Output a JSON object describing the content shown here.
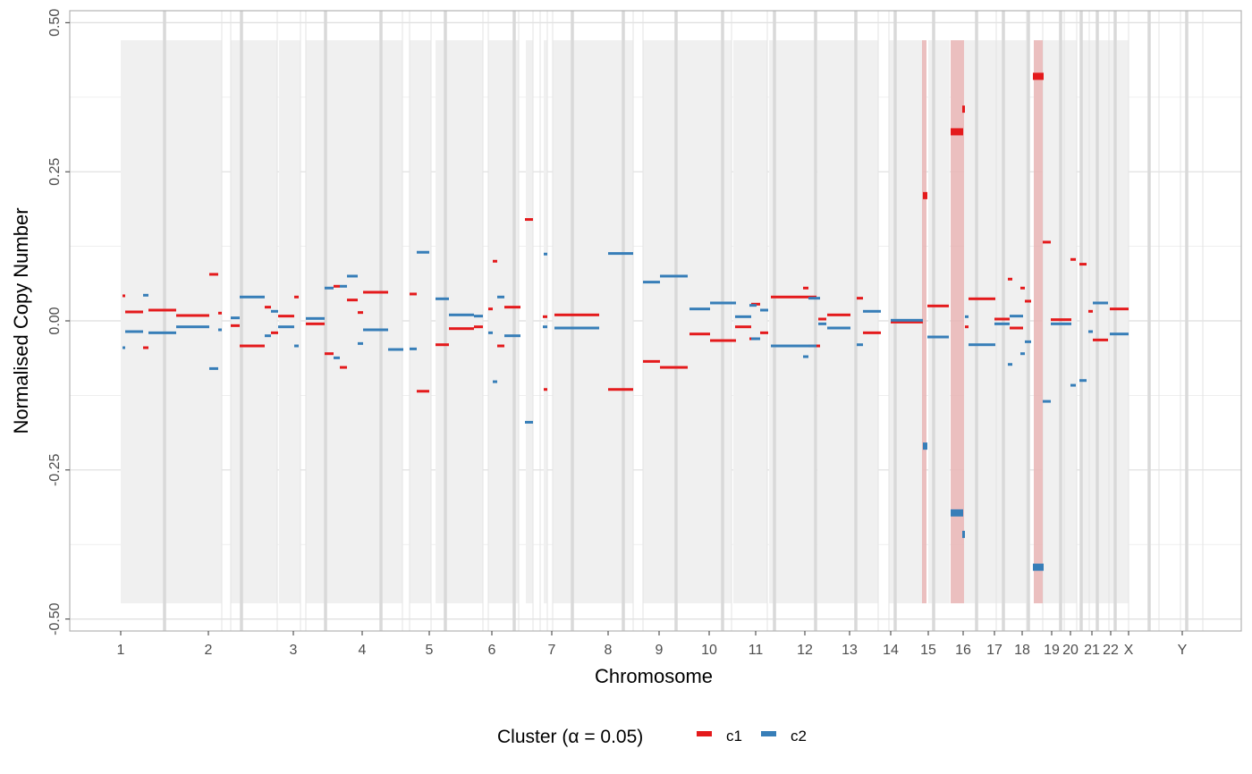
{
  "chart_data": {
    "type": "segment",
    "xlabel": "Chromosome",
    "ylabel": "Normalised Copy Number",
    "ylim": [
      -0.52,
      0.52
    ],
    "y_ticks": [
      "0.50",
      "0.25",
      "0.00",
      "-0.25",
      "-0.50"
    ],
    "y_tick_values": [
      0.5,
      0.25,
      0.0,
      -0.25,
      -0.5
    ],
    "grid": true,
    "legend_placement": "bottom",
    "legend": {
      "title": "Cluster (α = 0.05)",
      "items": [
        {
          "name": "c1",
          "color": "#e41a1c"
        },
        {
          "name": "c2",
          "color": "#377eb8"
        }
      ]
    },
    "chromosomes": [
      "1",
      "2",
      "3",
      "4",
      "5",
      "6",
      "7",
      "8",
      "9",
      "10",
      "11",
      "12",
      "13",
      "14",
      "15",
      "16",
      "17",
      "18",
      "19",
      "20",
      "21",
      "22",
      "X",
      "Y"
    ],
    "highlighted_chromosome_bands": [
      "15",
      "16",
      "19"
    ],
    "series": [
      {
        "name": "c1",
        "color": "#e41a1c",
        "segments": [
          {
            "chrom": "1",
            "start": 0.0,
            "end": 0.02,
            "y": 0.042
          },
          {
            "chrom": "1",
            "start": 0.02,
            "end": 0.15,
            "y": 0.015
          },
          {
            "chrom": "1",
            "start": 0.15,
            "end": 0.2,
            "y": -0.045
          },
          {
            "chrom": "1",
            "start": 0.2,
            "end": 0.42,
            "y": 0.018
          },
          {
            "chrom": "1",
            "start": 0.42,
            "end": 0.72,
            "y": 0.009
          },
          {
            "chrom": "1",
            "start": 0.72,
            "end": 0.82,
            "y": 0.078
          },
          {
            "chrom": "1",
            "start": 0.85,
            "end": 0.9,
            "y": 0.013
          },
          {
            "chrom": "2",
            "start": 0.0,
            "end": 0.05,
            "y": -0.008
          },
          {
            "chrom": "2",
            "start": 0.05,
            "end": 0.32,
            "y": -0.042
          },
          {
            "chrom": "2",
            "start": 0.35,
            "end": 0.42,
            "y": 0.023
          },
          {
            "chrom": "2",
            "start": 0.42,
            "end": 0.5,
            "y": -0.02
          },
          {
            "chrom": "2",
            "start": 0.52,
            "end": 0.7,
            "y": 0.008
          },
          {
            "chrom": "2",
            "start": 0.72,
            "end": 0.78,
            "y": 0.04
          },
          {
            "chrom": "3",
            "start": 0.0,
            "end": 0.15,
            "y": -0.005
          },
          {
            "chrom": "3",
            "start": 0.15,
            "end": 0.22,
            "y": -0.055
          },
          {
            "chrom": "3",
            "start": 0.22,
            "end": 0.28,
            "y": 0.058
          },
          {
            "chrom": "3",
            "start": 0.28,
            "end": 0.36,
            "y": -0.078
          },
          {
            "chrom": "3",
            "start": 0.4,
            "end": 0.44,
            "y": 0.035
          },
          {
            "chrom": "3",
            "start": 0.44,
            "end": 0.62,
            "y": 0.014
          },
          {
            "chrom": "3",
            "start": 0.65,
            "end": 0.9,
            "y": 0.048
          },
          {
            "chrom": "4",
            "start": 0.0,
            "end": 0.05,
            "y": 0.045
          },
          {
            "chrom": "4",
            "start": 0.05,
            "end": 0.17,
            "y": -0.118
          },
          {
            "chrom": "4",
            "start": 0.23,
            "end": 0.35,
            "y": -0.04
          },
          {
            "chrom": "4",
            "start": 0.38,
            "end": 0.6,
            "y": -0.013
          },
          {
            "chrom": "4",
            "start": 0.6,
            "end": 0.65,
            "y": -0.01
          },
          {
            "chrom": "5",
            "start": 0.0,
            "end": 0.05,
            "y": 0.02
          },
          {
            "chrom": "5",
            "start": 0.08,
            "end": 0.12,
            "y": 0.1
          },
          {
            "chrom": "5",
            "start": 0.12,
            "end": 0.18,
            "y": -0.042
          },
          {
            "chrom": "5",
            "start": 0.2,
            "end": 0.42,
            "y": 0.023
          },
          {
            "chrom": "5",
            "start": 0.44,
            "end": 0.52,
            "y": 0.17
          },
          {
            "chrom": "6",
            "start": 0.02,
            "end": 0.06,
            "y": -0.115
          },
          {
            "chrom": "6",
            "start": 0.06,
            "end": 0.68,
            "y": 0.007
          },
          {
            "chrom": "6",
            "start": 0.7,
            "end": 0.8,
            "y": 0.01
          },
          {
            "chrom": "7",
            "start": 0.0,
            "end": 0.35,
            "y": -0.115
          },
          {
            "chrom": "8",
            "start": 0.0,
            "end": 0.28,
            "y": -0.068
          },
          {
            "chrom": "8",
            "start": 0.28,
            "end": 0.8,
            "y": -0.078
          },
          {
            "chrom": "9",
            "start": 0.0,
            "end": 0.42,
            "y": -0.022
          },
          {
            "chrom": "9",
            "start": 0.42,
            "end": 0.95,
            "y": -0.033
          },
          {
            "chrom": "10",
            "start": 0.0,
            "end": 0.22,
            "y": -0.01
          },
          {
            "chrom": "10",
            "start": 0.3,
            "end": 0.42,
            "y": 0.028
          },
          {
            "chrom": "10",
            "start": 0.42,
            "end": 0.62,
            "y": -0.02
          },
          {
            "chrom": "10",
            "start": 0.65,
            "end": 0.95,
            "y": 0.04
          },
          {
            "chrom": "11",
            "start": 0.3,
            "end": 0.55,
            "y": -0.03
          },
          {
            "chrom": "11",
            "start": 0.6,
            "end": 0.7,
            "y": 0.055
          },
          {
            "chrom": "12",
            "start": 0.0,
            "end": 0.15,
            "y": 0.003
          },
          {
            "chrom": "12",
            "start": 0.15,
            "end": 0.3,
            "y": -0.042
          },
          {
            "chrom": "12",
            "start": 0.4,
            "end": 0.95,
            "y": 0.01
          },
          {
            "chrom": "13",
            "start": 0.05,
            "end": 0.18,
            "y": 0.038
          },
          {
            "chrom": "13",
            "start": 0.4,
            "end": 0.7,
            "y": -0.02
          },
          {
            "chrom": "14",
            "start": 0.0,
            "end": 0.95,
            "y": -0.002
          },
          {
            "chrom": "15",
            "start": 0.0,
            "end": 0.1,
            "y": 0.21
          },
          {
            "chrom": "15",
            "start": 0.2,
            "end": 0.95,
            "y": 0.025
          },
          {
            "chrom": "16",
            "start": 0.0,
            "end": 0.35,
            "y": 0.317
          },
          {
            "chrom": "16",
            "start": 0.36,
            "end": 0.42,
            "y": 0.355
          },
          {
            "chrom": "16",
            "start": 0.42,
            "end": 0.5,
            "y": -0.01
          },
          {
            "chrom": "16",
            "start": 0.5,
            "end": 1.0,
            "y": 0.037
          },
          {
            "chrom": "17",
            "start": 0.0,
            "end": 0.62,
            "y": 0.003
          },
          {
            "chrom": "17",
            "start": 0.62,
            "end": 0.72,
            "y": 0.07
          },
          {
            "chrom": "17",
            "start": 0.72,
            "end": 1.0,
            "y": -0.012
          },
          {
            "chrom": "18",
            "start": 0.0,
            "end": 0.2,
            "y": 0.055
          },
          {
            "chrom": "18",
            "start": 0.3,
            "end": 0.5,
            "y": 0.033
          },
          {
            "chrom": "18",
            "start": 0.55,
            "end": 0.95,
            "y": 0.41
          },
          {
            "chrom": "19",
            "start": 0.0,
            "end": 0.3,
            "y": 0.132
          },
          {
            "chrom": "19",
            "start": 0.35,
            "end": 1.0,
            "y": 0.002
          },
          {
            "chrom": "20",
            "start": 0.0,
            "end": 0.5,
            "y": 0.103
          },
          {
            "chrom": "20",
            "start": 0.5,
            "end": 1.0,
            "y": 0.095
          },
          {
            "chrom": "21",
            "start": 0.1,
            "end": 0.9,
            "y": 0.016
          },
          {
            "chrom": "22",
            "start": 0.0,
            "end": 0.95,
            "y": -0.032
          },
          {
            "chrom": "X",
            "start": 0.0,
            "end": 0.9,
            "y": 0.02
          }
        ]
      },
      {
        "name": "c2",
        "color": "#377eb8",
        "segments": [
          {
            "chrom": "1",
            "start": 0.0,
            "end": 0.02,
            "y": -0.045
          },
          {
            "chrom": "1",
            "start": 0.03,
            "end": 0.15,
            "y": -0.018
          },
          {
            "chrom": "1",
            "start": 0.15,
            "end": 0.2,
            "y": 0.043
          },
          {
            "chrom": "1",
            "start": 0.2,
            "end": 0.42,
            "y": -0.02
          },
          {
            "chrom": "1",
            "start": 0.42,
            "end": 0.72,
            "y": -0.01
          },
          {
            "chrom": "1",
            "start": 0.72,
            "end": 0.82,
            "y": -0.08
          },
          {
            "chrom": "1",
            "start": 0.85,
            "end": 0.9,
            "y": -0.015
          },
          {
            "chrom": "2",
            "start": 0.0,
            "end": 0.05,
            "y": 0.005
          },
          {
            "chrom": "2",
            "start": 0.05,
            "end": 0.32,
            "y": 0.04
          },
          {
            "chrom": "2",
            "start": 0.35,
            "end": 0.42,
            "y": -0.025
          },
          {
            "chrom": "2",
            "start": 0.42,
            "end": 0.5,
            "y": 0.016
          },
          {
            "chrom": "2",
            "start": 0.52,
            "end": 0.7,
            "y": -0.01
          },
          {
            "chrom": "2",
            "start": 0.72,
            "end": 0.78,
            "y": -0.042
          },
          {
            "chrom": "3",
            "start": 0.0,
            "end": 0.15,
            "y": 0.004
          },
          {
            "chrom": "3",
            "start": 0.15,
            "end": 0.2,
            "y": 0.055
          },
          {
            "chrom": "3",
            "start": 0.2,
            "end": 0.24,
            "y": -0.062
          },
          {
            "chrom": "3",
            "start": 0.24,
            "end": 0.28,
            "y": 0.058
          },
          {
            "chrom": "3",
            "start": 0.28,
            "end": 0.36,
            "y": 0.075
          },
          {
            "chrom": "3",
            "start": 0.4,
            "end": 0.44,
            "y": -0.038
          },
          {
            "chrom": "3",
            "start": 0.44,
            "end": 0.62,
            "y": -0.015
          },
          {
            "chrom": "3",
            "start": 0.65,
            "end": 0.9,
            "y": -0.048
          },
          {
            "chrom": "4",
            "start": 0.0,
            "end": 0.05,
            "y": -0.047
          },
          {
            "chrom": "4",
            "start": 0.05,
            "end": 0.17,
            "y": 0.115
          },
          {
            "chrom": "4",
            "start": 0.23,
            "end": 0.35,
            "y": 0.037
          },
          {
            "chrom": "4",
            "start": 0.38,
            "end": 0.6,
            "y": 0.01
          },
          {
            "chrom": "4",
            "start": 0.6,
            "end": 0.65,
            "y": 0.008
          },
          {
            "chrom": "5",
            "start": 0.0,
            "end": 0.05,
            "y": -0.02
          },
          {
            "chrom": "5",
            "start": 0.08,
            "end": 0.12,
            "y": -0.102
          },
          {
            "chrom": "5",
            "start": 0.12,
            "end": 0.18,
            "y": 0.04
          },
          {
            "chrom": "5",
            "start": 0.2,
            "end": 0.42,
            "y": -0.025
          },
          {
            "chrom": "5",
            "start": 0.44,
            "end": 0.52,
            "y": -0.17
          },
          {
            "chrom": "6",
            "start": 0.02,
            "end": 0.06,
            "y": 0.112
          },
          {
            "chrom": "6",
            "start": 0.06,
            "end": 0.68,
            "y": -0.01
          },
          {
            "chrom": "6",
            "start": 0.7,
            "end": 0.8,
            "y": -0.012
          },
          {
            "chrom": "7",
            "start": 0.0,
            "end": 0.35,
            "y": 0.113
          },
          {
            "chrom": "8",
            "start": 0.0,
            "end": 0.28,
            "y": 0.065
          },
          {
            "chrom": "8",
            "start": 0.28,
            "end": 0.8,
            "y": 0.075
          },
          {
            "chrom": "9",
            "start": 0.0,
            "end": 0.42,
            "y": 0.02
          },
          {
            "chrom": "9",
            "start": 0.42,
            "end": 0.95,
            "y": 0.03
          },
          {
            "chrom": "10",
            "start": 0.0,
            "end": 0.22,
            "y": 0.007
          },
          {
            "chrom": "10",
            "start": 0.3,
            "end": 0.42,
            "y": -0.03
          },
          {
            "chrom": "10",
            "start": 0.42,
            "end": 0.62,
            "y": 0.018
          },
          {
            "chrom": "10",
            "start": 0.65,
            "end": 0.95,
            "y": -0.042
          },
          {
            "chrom": "11",
            "start": 0.3,
            "end": 0.55,
            "y": 0.026
          },
          {
            "chrom": "11",
            "start": 0.6,
            "end": 0.7,
            "y": -0.06
          },
          {
            "chrom": "12",
            "start": 0.0,
            "end": 0.15,
            "y": -0.005
          },
          {
            "chrom": "12",
            "start": 0.15,
            "end": 0.3,
            "y": 0.038
          },
          {
            "chrom": "12",
            "start": 0.4,
            "end": 0.95,
            "y": -0.012
          },
          {
            "chrom": "13",
            "start": 0.05,
            "end": 0.18,
            "y": -0.04
          },
          {
            "chrom": "13",
            "start": 0.4,
            "end": 0.7,
            "y": 0.016
          },
          {
            "chrom": "14",
            "start": 0.0,
            "end": 0.95,
            "y": 0.001
          },
          {
            "chrom": "15",
            "start": 0.0,
            "end": 0.1,
            "y": -0.21
          },
          {
            "chrom": "15",
            "start": 0.2,
            "end": 0.95,
            "y": -0.027
          },
          {
            "chrom": "16",
            "start": 0.0,
            "end": 0.35,
            "y": -0.322
          },
          {
            "chrom": "16",
            "start": 0.36,
            "end": 0.42,
            "y": -0.358
          },
          {
            "chrom": "16",
            "start": 0.42,
            "end": 0.5,
            "y": 0.007
          },
          {
            "chrom": "16",
            "start": 0.5,
            "end": 1.0,
            "y": -0.04
          },
          {
            "chrom": "17",
            "start": 0.0,
            "end": 0.62,
            "y": -0.005
          },
          {
            "chrom": "17",
            "start": 0.62,
            "end": 0.72,
            "y": -0.073
          },
          {
            "chrom": "17",
            "start": 0.72,
            "end": 1.0,
            "y": 0.008
          },
          {
            "chrom": "18",
            "start": 0.0,
            "end": 0.2,
            "y": -0.055
          },
          {
            "chrom": "18",
            "start": 0.3,
            "end": 0.5,
            "y": -0.035
          },
          {
            "chrom": "18",
            "start": 0.55,
            "end": 0.95,
            "y": -0.413
          },
          {
            "chrom": "19",
            "start": 0.0,
            "end": 0.3,
            "y": -0.135
          },
          {
            "chrom": "19",
            "start": 0.35,
            "end": 1.0,
            "y": -0.005
          },
          {
            "chrom": "20",
            "start": 0.0,
            "end": 0.5,
            "y": -0.108
          },
          {
            "chrom": "20",
            "start": 0.5,
            "end": 1.0,
            "y": -0.1
          },
          {
            "chrom": "21",
            "start": 0.1,
            "end": 0.9,
            "y": -0.018
          },
          {
            "chrom": "22",
            "start": 0.0,
            "end": 0.95,
            "y": 0.03
          },
          {
            "chrom": "X",
            "start": 0.0,
            "end": 0.9,
            "y": -0.022
          }
        ]
      }
    ]
  }
}
